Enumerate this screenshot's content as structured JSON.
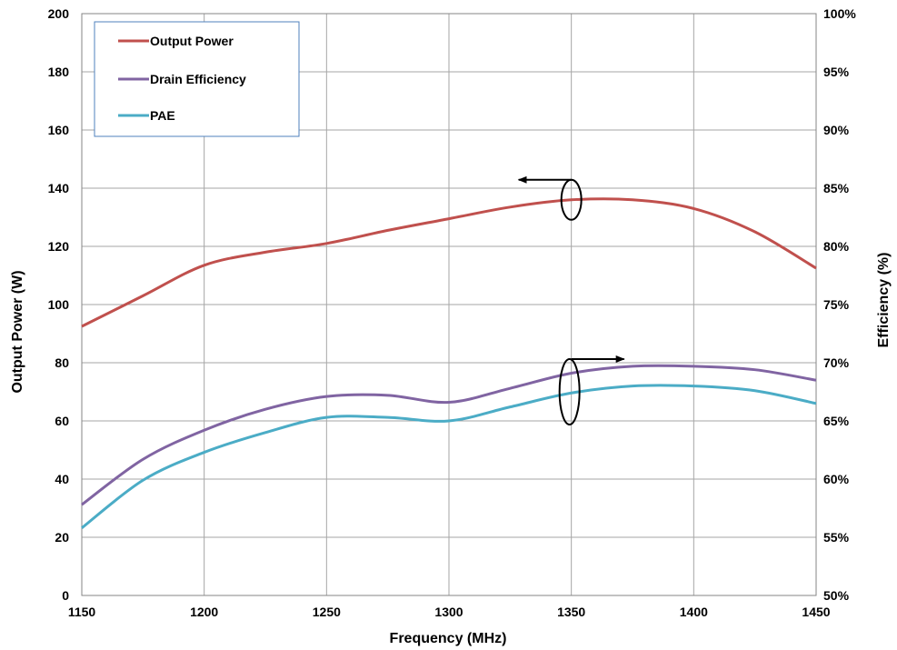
{
  "chart_data": {
    "type": "line",
    "title": "",
    "xlabel": "Frequency (MHz)",
    "ylabel": "Output  Power (W)",
    "y2label": "Efficiency (%)",
    "xlim": [
      1150,
      1450
    ],
    "ylim": [
      0,
      200
    ],
    "y2lim": [
      50,
      100
    ],
    "xticks": [
      "1150",
      "1200",
      "1250",
      "1300",
      "1350",
      "1400",
      "1450"
    ],
    "yticks": [
      "0",
      "20",
      "40",
      "60",
      "80",
      "100",
      "120",
      "140",
      "160",
      "180",
      "200"
    ],
    "y2ticks": [
      "50%",
      "55%",
      "60%",
      "65%",
      "70%",
      "75%",
      "80%",
      "85%",
      "90%",
      "95%",
      "100%"
    ],
    "grid": true,
    "legend_position": "top-left",
    "series": [
      {
        "name": "Output Power",
        "axis": "left",
        "color": "#c0504d",
        "x": [
          1150,
          1175,
          1200,
          1225,
          1250,
          1275,
          1300,
          1325,
          1350,
          1375,
          1400,
          1425,
          1450
        ],
        "y": [
          92.5,
          103,
          113.5,
          118,
          121,
          125.5,
          129.5,
          133.5,
          136,
          136,
          133,
          125,
          112.5
        ]
      },
      {
        "name": "Drain Efficiency",
        "axis": "right",
        "color": "#8064a2",
        "x": [
          1150,
          1175,
          1200,
          1225,
          1250,
          1275,
          1300,
          1325,
          1350,
          1375,
          1400,
          1425,
          1450
        ],
        "y": [
          57.8,
          61.7,
          64.2,
          66.0,
          67.1,
          67.2,
          66.6,
          67.8,
          69.1,
          69.7,
          69.7,
          69.4,
          68.5
        ]
      },
      {
        "name": "PAE",
        "axis": "right",
        "color": "#4bacc6",
        "x": [
          1150,
          1175,
          1200,
          1225,
          1250,
          1275,
          1300,
          1325,
          1350,
          1375,
          1400,
          1425,
          1450
        ],
        "y": [
          55.8,
          59.9,
          62.3,
          64.0,
          65.3,
          65.3,
          65.0,
          66.2,
          67.4,
          68.0,
          68.0,
          67.6,
          66.5
        ]
      }
    ],
    "annotations": [
      {
        "type": "arrow-left",
        "points_to": "Output Power axis",
        "at_x": 1350,
        "at_y": 136
      },
      {
        "type": "arrow-right",
        "points_to": "Efficiency axis",
        "at_x": 1350,
        "at_y2": 67.5
      }
    ]
  }
}
